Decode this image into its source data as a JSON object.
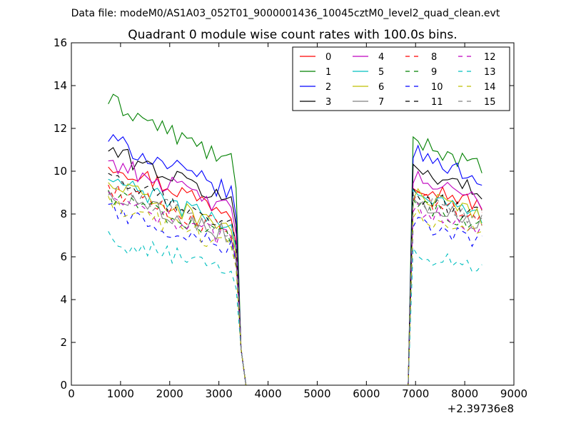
{
  "chart_data": {
    "type": "line",
    "supertitle": "Data file: modeM0/AS1A03_052T01_9000001436_10045cztM0_level2_quad_clean.evt",
    "title": "Quadrant 0 module wise count rates with 100.0s bins.",
    "xlabel": "",
    "ylabel": "",
    "xlim": [
      0,
      9000
    ],
    "ylim": [
      0,
      16
    ],
    "x_offset_label": "+2.39736e8",
    "xticks": [
      0,
      1000,
      2000,
      3000,
      4000,
      5000,
      6000,
      7000,
      8000,
      9000
    ],
    "xtick_labels": [
      "0",
      "1000",
      "2000",
      "3000",
      "4000",
      "5000",
      "6000",
      "7000",
      "8000",
      "9000"
    ],
    "yticks": [
      0,
      2,
      4,
      6,
      8,
      10,
      12,
      14,
      16
    ],
    "ytick_labels": [
      "0",
      "2",
      "4",
      "6",
      "8",
      "10",
      "12",
      "14",
      "16"
    ],
    "legend_position": "top-right",
    "legend_columns": 4,
    "segments": [
      {
        "x_start": 750,
        "x_step": 100,
        "count": 26
      },
      {
        "x_start": 3350,
        "x_step": 100,
        "count": 3
      },
      {
        "x_start": 6850,
        "x_step": 100,
        "count": 15
      }
    ],
    "series": [
      {
        "name": "0",
        "color": "#ff0000",
        "dash": "solid",
        "level": 10.4,
        "level2": 9.5
      },
      {
        "name": "1",
        "color": "#008000",
        "dash": "solid",
        "level": 13.3,
        "level2": 11.5
      },
      {
        "name": "2",
        "color": "#0000ff",
        "dash": "solid",
        "level": 11.5,
        "level2": 10.9
      },
      {
        "name": "3",
        "color": "#000000",
        "dash": "solid",
        "level": 11.0,
        "level2": 10.2
      },
      {
        "name": "4",
        "color": "#bf00bf",
        "dash": "solid",
        "level": 10.5,
        "level2": 9.7
      },
      {
        "name": "5",
        "color": "#00bfbf",
        "dash": "solid",
        "level": 9.6,
        "level2": 9.0
      },
      {
        "name": "6",
        "color": "#bfbf00",
        "dash": "solid",
        "level": 9.4,
        "level2": 8.9
      },
      {
        "name": "7",
        "color": "#808080",
        "dash": "solid",
        "level": 9.0,
        "level2": 8.6
      },
      {
        "name": "8",
        "color": "#ff0000",
        "dash": "dashed",
        "level": 9.2,
        "level2": 8.8
      },
      {
        "name": "9",
        "color": "#008000",
        "dash": "dashed",
        "level": 8.9,
        "level2": 8.5
      },
      {
        "name": "10",
        "color": "#0000ff",
        "dash": "dashed",
        "level": 8.2,
        "level2": 7.6
      },
      {
        "name": "11",
        "color": "#000000",
        "dash": "dashed",
        "level": 9.6,
        "level2": 9.0
      },
      {
        "name": "12",
        "color": "#bf00bf",
        "dash": "dashed",
        "level": 8.7,
        "level2": 8.3
      },
      {
        "name": "13",
        "color": "#00bfbf",
        "dash": "dashed",
        "level": 6.8,
        "level2": 6.2
      },
      {
        "name": "14",
        "color": "#bfbf00",
        "dash": "dashed",
        "level": 8.4,
        "level2": 8.0
      },
      {
        "name": "15",
        "color": "#808080",
        "dash": "dashed",
        "level": 9.3,
        "level2": 8.7
      }
    ]
  }
}
